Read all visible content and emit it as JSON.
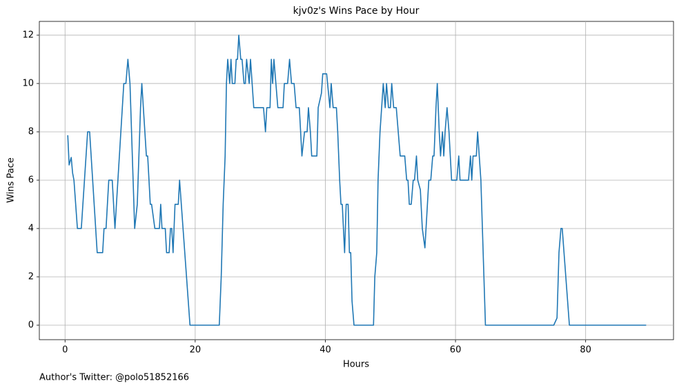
{
  "chart_data": {
    "type": "line",
    "title": "kjv0z's Wins Pace by Hour",
    "xlabel": "Hours",
    "ylabel": "Wins Pace",
    "footer": "Author's Twitter: @polo51852166",
    "xlim": [
      -3.95,
      93.5
    ],
    "ylim": [
      -0.6,
      12.57
    ],
    "xticks": [
      0,
      20,
      40,
      60,
      80
    ],
    "yticks": [
      0,
      2,
      4,
      6,
      8,
      10,
      12
    ],
    "grid": true,
    "series": [
      {
        "name": "Wins Pace",
        "color": "#1f77b4",
        "x": [
          0.42,
          0.63,
          0.95,
          1.16,
          1.37,
          1.9,
          2.5,
          3.47,
          3.78,
          4.94,
          5.78,
          5.99,
          6.3,
          6.72,
          7.25,
          7.67,
          9.03,
          9.35,
          9.66,
          9.98,
          10.7,
          11.1,
          11.6,
          11.8,
          12.5,
          12.7,
          13.1,
          13.3,
          13.8,
          14.5,
          14.7,
          14.9,
          15.4,
          15.6,
          16.0,
          16.2,
          16.4,
          16.6,
          16.9,
          17.4,
          17.6,
          19.2,
          23.7,
          24.0,
          24.3,
          24.6,
          24.8,
          25.0,
          25.3,
          25.5,
          25.7,
          26.1,
          26.3,
          26.5,
          26.7,
          27.0,
          27.2,
          27.5,
          27.7,
          27.9,
          28.3,
          28.5,
          29.0,
          30.5,
          30.8,
          31.0,
          31.5,
          31.7,
          31.9,
          32.1,
          32.7,
          33.5,
          33.7,
          34.2,
          34.5,
          34.8,
          35.2,
          35.5,
          36.0,
          36.4,
          36.8,
          37.2,
          37.4,
          37.7,
          37.9,
          38.7,
          38.9,
          39.4,
          39.6,
          40.2,
          40.7,
          40.9,
          41.2,
          41.7,
          41.9,
          42.2,
          42.4,
          42.6,
          42.96,
          43.2,
          43.5,
          43.7,
          43.9,
          44.1,
          44.4,
          47.4,
          47.6,
          47.9,
          48.1,
          48.4,
          48.9,
          49.2,
          49.4,
          49.7,
          50.0,
          50.2,
          50.5,
          50.9,
          51.5,
          52.2,
          52.5,
          52.7,
          52.9,
          53.2,
          53.5,
          53.7,
          54.0,
          54.2,
          54.6,
          54.9,
          55.3,
          55.9,
          56.2,
          56.5,
          56.7,
          57.0,
          57.2,
          57.5,
          57.7,
          58.0,
          58.2,
          58.4,
          58.7,
          59.0,
          59.4,
          60.2,
          60.5,
          60.7,
          62.0,
          62.3,
          62.5,
          62.7,
          63.2,
          63.4,
          63.9,
          64.6,
          75.1,
          75.6,
          75.9,
          76.2,
          76.4,
          77.5,
          89.3
        ],
        "values": [
          7.86,
          6.63,
          6.94,
          6.3,
          6,
          4,
          4,
          8,
          8,
          3,
          3,
          4,
          4,
          6,
          6,
          4,
          10,
          10,
          11,
          10,
          4,
          5,
          9,
          10,
          7,
          7,
          5,
          5,
          4,
          4,
          5,
          4,
          4,
          3,
          3,
          4,
          4,
          3,
          5,
          5,
          6,
          0,
          0,
          2,
          5,
          7,
          10,
          11,
          10,
          11,
          10,
          10,
          11,
          11,
          12,
          11,
          11,
          10,
          10,
          11,
          10,
          11,
          9,
          9,
          8,
          9,
          9,
          11,
          10,
          11,
          9,
          9,
          10,
          10,
          11,
          10,
          10,
          9,
          9,
          7,
          8,
          8,
          9,
          8,
          7,
          7,
          9,
          9.6,
          10.4,
          10.4,
          9,
          10,
          9,
          9,
          8,
          6,
          5,
          5,
          3,
          5,
          5,
          3,
          3,
          1,
          0,
          0,
          2,
          3,
          6,
          8,
          10,
          9,
          10,
          9,
          9,
          10,
          9,
          9,
          7,
          7,
          6,
          6,
          5,
          5,
          6,
          6,
          7,
          6,
          5.6,
          4,
          3.2,
          6,
          6,
          7,
          7,
          9,
          10,
          8,
          7,
          8,
          7,
          8,
          9,
          8,
          6,
          6,
          7,
          6,
          6,
          7,
          6,
          7,
          7,
          8,
          6,
          0,
          0,
          0.3,
          3,
          4,
          4,
          0,
          0
        ]
      }
    ]
  }
}
